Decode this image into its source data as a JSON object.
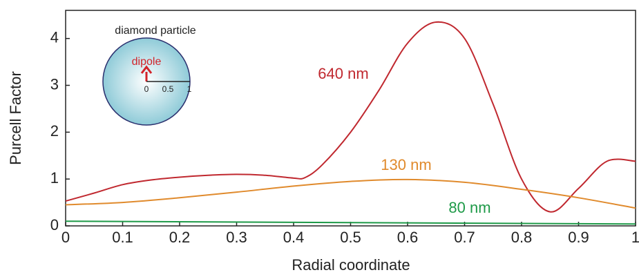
{
  "chart_data": {
    "type": "line",
    "xlabel": "Radial coordinate",
    "ylabel": "Purcell Factor",
    "xlim": [
      0,
      1
    ],
    "ylim": [
      0,
      4.6
    ],
    "xticks": [
      0,
      0.1,
      0.2,
      0.3,
      0.4,
      0.5,
      0.6,
      0.7,
      0.8,
      0.9,
      1
    ],
    "yticks": [
      0,
      1,
      2,
      3,
      4
    ],
    "series": [
      {
        "name": "640 nm",
        "color": "#c0282f",
        "x": [
          0,
          0.05,
          0.1,
          0.15,
          0.2,
          0.25,
          0.3,
          0.35,
          0.4,
          0.42,
          0.45,
          0.5,
          0.55,
          0.6,
          0.65,
          0.7,
          0.75,
          0.8,
          0.85,
          0.9,
          0.95,
          1.0
        ],
        "values": [
          0.53,
          0.7,
          0.88,
          0.98,
          1.04,
          1.08,
          1.1,
          1.08,
          1.02,
          1.03,
          1.3,
          2.0,
          2.9,
          3.9,
          4.35,
          4.0,
          2.6,
          1.0,
          0.3,
          0.8,
          1.38,
          1.38
        ]
      },
      {
        "name": "130 nm",
        "color": "#e08a2c",
        "x": [
          0,
          0.1,
          0.2,
          0.3,
          0.4,
          0.5,
          0.6,
          0.7,
          0.8,
          0.9,
          1.0
        ],
        "values": [
          0.45,
          0.5,
          0.6,
          0.72,
          0.85,
          0.95,
          0.99,
          0.93,
          0.78,
          0.6,
          0.38
        ]
      },
      {
        "name": "80 nm",
        "color": "#1e9a48",
        "x": [
          0,
          0.5,
          1.0
        ],
        "values": [
          0.1,
          0.07,
          0.04
        ]
      }
    ],
    "inset": {
      "label": "diamond particle",
      "dipole": "dipole",
      "scale_labels": [
        "0",
        "0.5",
        "1"
      ]
    }
  }
}
